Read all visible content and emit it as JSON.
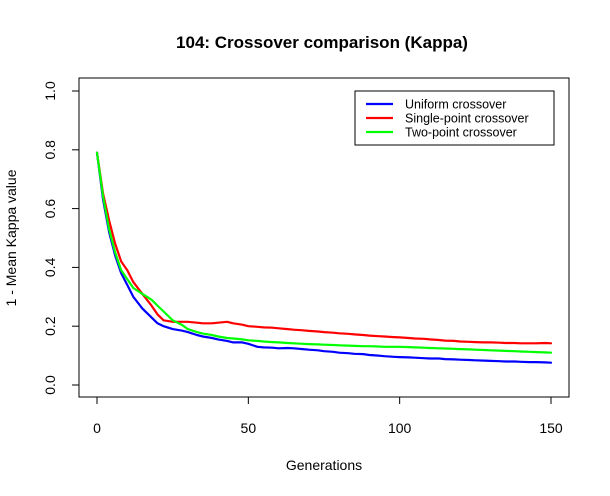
{
  "chart_data": {
    "type": "line",
    "title": "104: Crossover comparison (Kappa)",
    "xlabel": "Generations",
    "ylabel": "1 - Mean Kappa value",
    "xlim": [
      0,
      150
    ],
    "ylim": [
      0,
      1
    ],
    "xticks": [
      0,
      50,
      100,
      150
    ],
    "yticks": [
      0.0,
      0.2,
      0.4,
      0.6,
      0.8,
      1.0
    ],
    "xtick_labels": [
      "0",
      "50",
      "100",
      "150"
    ],
    "ytick_labels": [
      "0.0",
      "0.2",
      "0.4",
      "0.6",
      "0.8",
      "1.0"
    ],
    "grid": false,
    "legend_position": "top-right",
    "series": [
      {
        "name": "Uniform crossover",
        "color": "#0000ff",
        "x": [
          0,
          2,
          4,
          6,
          8,
          10,
          12,
          15,
          18,
          20,
          22,
          25,
          28,
          30,
          33,
          35,
          38,
          40,
          43,
          45,
          48,
          50,
          53,
          55,
          58,
          60,
          63,
          65,
          68,
          70,
          73,
          75,
          78,
          80,
          83,
          85,
          88,
          90,
          93,
          95,
          98,
          100,
          103,
          105,
          108,
          110,
          113,
          115,
          118,
          120,
          123,
          125,
          128,
          130,
          133,
          135,
          138,
          140,
          143,
          145,
          148,
          150
        ],
        "values": [
          0.79,
          0.63,
          0.52,
          0.44,
          0.38,
          0.34,
          0.3,
          0.26,
          0.23,
          0.21,
          0.2,
          0.19,
          0.185,
          0.18,
          0.17,
          0.165,
          0.16,
          0.155,
          0.15,
          0.145,
          0.145,
          0.14,
          0.13,
          0.128,
          0.127,
          0.125,
          0.126,
          0.125,
          0.122,
          0.12,
          0.118,
          0.115,
          0.113,
          0.11,
          0.108,
          0.106,
          0.105,
          0.102,
          0.1,
          0.098,
          0.096,
          0.095,
          0.094,
          0.093,
          0.091,
          0.09,
          0.09,
          0.088,
          0.087,
          0.086,
          0.085,
          0.084,
          0.083,
          0.082,
          0.081,
          0.08,
          0.08,
          0.079,
          0.078,
          0.078,
          0.077,
          0.076
        ]
      },
      {
        "name": "Single-point crossover",
        "color": "#ff0000",
        "x": [
          0,
          2,
          4,
          6,
          8,
          10,
          12,
          15,
          18,
          20,
          22,
          25,
          28,
          30,
          33,
          35,
          38,
          40,
          43,
          45,
          48,
          50,
          53,
          55,
          58,
          60,
          63,
          65,
          68,
          70,
          73,
          75,
          78,
          80,
          83,
          85,
          88,
          90,
          93,
          95,
          98,
          100,
          103,
          105,
          108,
          110,
          113,
          115,
          118,
          120,
          123,
          125,
          128,
          130,
          133,
          135,
          138,
          140,
          143,
          145,
          148,
          150
        ],
        "values": [
          0.79,
          0.65,
          0.56,
          0.48,
          0.42,
          0.39,
          0.35,
          0.31,
          0.27,
          0.24,
          0.22,
          0.215,
          0.215,
          0.215,
          0.212,
          0.21,
          0.21,
          0.212,
          0.215,
          0.21,
          0.205,
          0.2,
          0.198,
          0.196,
          0.195,
          0.193,
          0.19,
          0.188,
          0.186,
          0.184,
          0.182,
          0.18,
          0.178,
          0.176,
          0.174,
          0.172,
          0.17,
          0.168,
          0.166,
          0.165,
          0.163,
          0.162,
          0.16,
          0.158,
          0.157,
          0.155,
          0.153,
          0.151,
          0.15,
          0.148,
          0.147,
          0.146,
          0.145,
          0.145,
          0.144,
          0.143,
          0.143,
          0.142,
          0.142,
          0.142,
          0.143,
          0.142
        ]
      },
      {
        "name": "Two-point crossover",
        "color": "#00ff00",
        "x": [
          0,
          2,
          4,
          6,
          8,
          10,
          12,
          15,
          18,
          20,
          22,
          25,
          28,
          30,
          33,
          35,
          38,
          40,
          43,
          45,
          48,
          50,
          53,
          55,
          58,
          60,
          63,
          65,
          68,
          70,
          73,
          75,
          78,
          80,
          83,
          85,
          88,
          90,
          93,
          95,
          98,
          100,
          103,
          105,
          108,
          110,
          113,
          115,
          118,
          120,
          123,
          125,
          128,
          130,
          133,
          135,
          138,
          140,
          143,
          145,
          148,
          150
        ],
        "values": [
          0.79,
          0.64,
          0.53,
          0.45,
          0.39,
          0.36,
          0.33,
          0.31,
          0.29,
          0.27,
          0.25,
          0.22,
          0.205,
          0.19,
          0.18,
          0.175,
          0.17,
          0.165,
          0.16,
          0.158,
          0.155,
          0.152,
          0.15,
          0.148,
          0.146,
          0.145,
          0.143,
          0.142,
          0.14,
          0.139,
          0.138,
          0.137,
          0.136,
          0.135,
          0.134,
          0.133,
          0.132,
          0.132,
          0.131,
          0.13,
          0.13,
          0.13,
          0.129,
          0.128,
          0.127,
          0.126,
          0.125,
          0.124,
          0.123,
          0.122,
          0.121,
          0.12,
          0.119,
          0.118,
          0.117,
          0.116,
          0.115,
          0.114,
          0.113,
          0.112,
          0.111,
          0.11
        ]
      }
    ]
  }
}
